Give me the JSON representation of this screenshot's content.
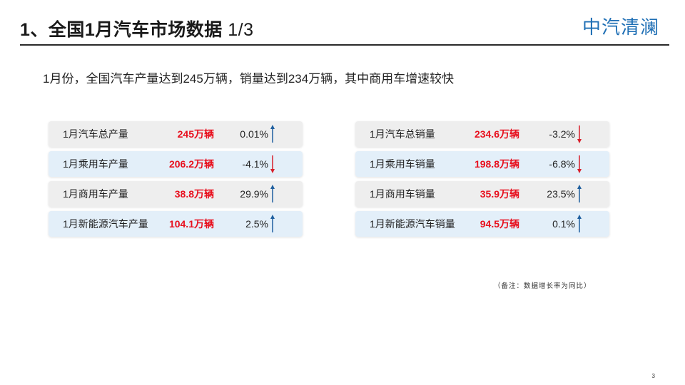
{
  "header": {
    "title": "1、全国1月汽车市场数据",
    "page_indicator": "1/3",
    "logo": "中汽清澜"
  },
  "subtitle": "1月份，全国汽车产量达到245万辆，销量达到234万辆，其中商用车增速较快",
  "colors": {
    "value_red": "#e8101e",
    "arrow_up": "#1f5f9f",
    "arrow_down": "#d81e2a",
    "row_gray": "#eeeeee",
    "row_blue": "#e3eff9",
    "logo_blue": "#1f6fb5"
  },
  "production": [
    {
      "label": "1月汽车总产量",
      "value": "245万辆",
      "change": "0.01%",
      "direction": "up"
    },
    {
      "label": "1月乘用车产量",
      "value": "206.2万辆",
      "change": "-4.1%",
      "direction": "down"
    },
    {
      "label": "1月商用车产量",
      "value": "38.8万辆",
      "change": "29.9%",
      "direction": "up"
    },
    {
      "label": "1月新能源汽车产量",
      "value": "104.1万辆",
      "change": "2.5%",
      "direction": "up"
    }
  ],
  "sales": [
    {
      "label": "1月汽车总销量",
      "value": "234.6万辆",
      "change": "-3.2%",
      "direction": "down"
    },
    {
      "label": "1月乘用车销量",
      "value": "198.8万辆",
      "change": "-6.8%",
      "direction": "down"
    },
    {
      "label": "1月商用车销量",
      "value": "35.9万辆",
      "change": "23.5%",
      "direction": "up"
    },
    {
      "label": "1月新能源汽车销量",
      "value": "94.5万辆",
      "change": "0.1%",
      "direction": "up"
    }
  ],
  "note": "（备注：数据增长率为同比）",
  "slide_number": "3"
}
